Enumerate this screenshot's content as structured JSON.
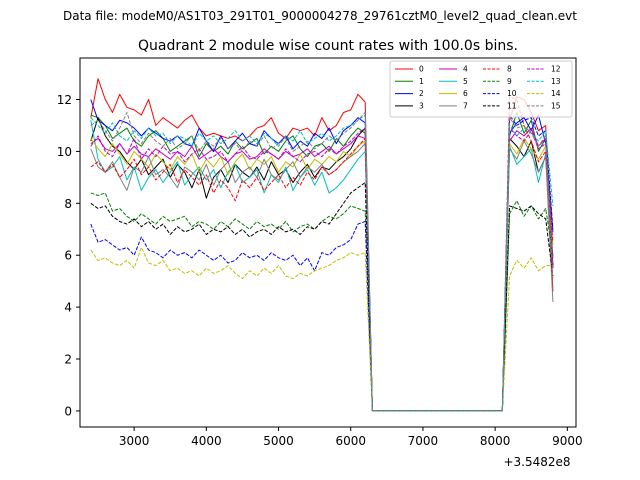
{
  "chart_data": {
    "type": "line",
    "suptitle": "Data file: modeM0/AS1T03_291T01_9000004278_29761cztM0_level2_quad_clean.evt",
    "title": "Quadrant 2 module wise count rates with 100.0s bins.",
    "xlabel": "",
    "ylabel": "",
    "offset_text": "+3.5482e8",
    "xlim": [
      2250,
      9120
    ],
    "ylim": [
      -0.62,
      13.6
    ],
    "xticks": [
      3000,
      4000,
      5000,
      6000,
      7000,
      8000,
      9000
    ],
    "yticks": [
      0,
      2,
      4,
      6,
      8,
      10,
      12
    ],
    "segments": [
      {
        "x_start": 2400,
        "x_end": 6200,
        "count": 39
      },
      {
        "x_start": 6300,
        "x_end": 8100,
        "count": 19
      },
      {
        "x_start": 8200,
        "x_end": 8800,
        "count": 7
      }
    ],
    "legend": {
      "loc": "upper right",
      "ncol": 4
    },
    "series": [
      {
        "name": "0",
        "color": "#ff0000",
        "dashed": false,
        "baseline": 11.4,
        "end_level": 4.6,
        "amplitude": 0.45,
        "seg1": [
          11.3,
          12.8,
          12.0,
          11.5,
          12.2,
          11.7,
          11.6,
          11.4,
          12.0,
          11.0,
          11.3,
          11.1,
          10.9,
          11.2,
          11.4,
          10.9,
          10.6,
          10.7,
          10.6,
          10.5,
          10.6,
          10.4,
          10.6,
          10.9,
          11.0,
          11.3,
          10.7,
          10.5,
          10.9,
          10.8,
          10.9,
          10.6,
          11.3,
          10.8,
          11.0,
          11.5,
          11.6,
          12.2,
          11.9
        ],
        "seg3": [
          11.2,
          12.1,
          12.0,
          11.5,
          10.8,
          11.0,
          4.6
        ]
      },
      {
        "name": "1",
        "color": "#008000",
        "dashed": false,
        "baseline": 10.4,
        "end_level": 5.5,
        "amplitude": 0.4,
        "seg1": [
          11.4,
          11.3,
          11.0,
          10.5,
          10.7,
          10.9,
          10.4,
          10.2,
          10.6,
          10.8,
          10.5,
          10.0,
          10.2,
          10.4,
          10.6,
          9.8,
          10.3,
          10.0,
          10.2,
          9.9,
          10.4,
          10.1,
          10.3,
          10.5,
          9.9,
          10.2,
          10.0,
          10.4,
          10.6,
          10.1,
          9.8,
          10.2,
          10.3,
          10.0,
          10.5,
          10.2,
          10.6,
          10.9,
          10.7
        ],
        "seg3": [
          10.6,
          11.5,
          10.7,
          11.2,
          10.0,
          10.5,
          5.5
        ]
      },
      {
        "name": "2",
        "color": "#0000ff",
        "dashed": false,
        "baseline": 10.5,
        "end_level": 6.9,
        "amplitude": 0.45,
        "seg1": [
          12.0,
          11.2,
          11.0,
          10.8,
          11.2,
          11.1,
          10.9,
          10.6,
          10.9,
          10.7,
          10.5,
          10.4,
          10.6,
          10.3,
          10.2,
          10.9,
          10.4,
          10.0,
          10.6,
          10.1,
          10.4,
          10.7,
          10.3,
          10.2,
          10.8,
          10.5,
          10.3,
          10.6,
          10.1,
          10.4,
          10.2,
          10.7,
          10.5,
          10.9,
          10.3,
          10.8,
          11.0,
          11.3,
          11.1
        ],
        "seg3": [
          10.7,
          11.1,
          11.3,
          10.8,
          11.4,
          10.3,
          6.9
        ]
      },
      {
        "name": "3",
        "color": "#000000",
        "dashed": false,
        "baseline": 9.4,
        "end_level": 5.6,
        "amplitude": 0.5,
        "seg1": [
          10.4,
          11.3,
          10.6,
          10.2,
          10.0,
          9.6,
          9.3,
          9.7,
          9.1,
          9.4,
          9.7,
          9.0,
          9.5,
          9.2,
          8.6,
          9.3,
          8.2,
          9.0,
          9.3,
          8.8,
          9.5,
          9.2,
          9.0,
          9.4,
          8.9,
          9.6,
          9.1,
          9.3,
          8.8,
          9.2,
          9.5,
          9.0,
          9.4,
          9.3,
          9.6,
          9.8,
          10.1,
          10.6,
          10.9
        ],
        "seg3": [
          10.5,
          10.2,
          9.8,
          10.4,
          9.2,
          9.8,
          5.6
        ]
      },
      {
        "name": "4",
        "color": "#bf00bf",
        "dashed": false,
        "baseline": 10.0,
        "end_level": 5.5,
        "amplitude": 0.35,
        "seg1": [
          10.3,
          10.5,
          10.1,
          10.0,
          10.3,
          9.9,
          10.2,
          9.9,
          9.8,
          10.1,
          9.9,
          9.7,
          10.0,
          9.8,
          10.2,
          9.7,
          9.9,
          10.1,
          9.8,
          9.6,
          9.9,
          10.0,
          9.7,
          9.8,
          10.1,
          9.9,
          9.7,
          10.0,
          9.8,
          9.9,
          10.1,
          9.8,
          10.0,
          10.2,
          9.9,
          10.1,
          10.3,
          10.6,
          10.5
        ],
        "seg3": [
          10.4,
          10.8,
          10.6,
          10.9,
          10.2,
          10.5,
          5.5
        ]
      },
      {
        "name": "5",
        "color": "#00bfbf",
        "dashed": false,
        "baseline": 9.2,
        "end_level": 5.9,
        "amplitude": 0.5,
        "seg1": [
          11.2,
          9.7,
          9.2,
          9.4,
          9.8,
          8.9,
          9.4,
          8.5,
          9.0,
          9.3,
          8.8,
          9.2,
          9.6,
          8.7,
          9.1,
          9.4,
          8.9,
          9.3,
          8.6,
          9.2,
          9.5,
          8.8,
          9.0,
          9.3,
          8.4,
          9.1,
          8.8,
          9.4,
          8.5,
          9.0,
          9.3,
          8.7,
          9.2,
          8.4,
          8.6,
          8.9,
          9.3,
          9.7,
          10.0
        ],
        "seg3": [
          10.2,
          9.5,
          9.8,
          10.1,
          8.8,
          9.9,
          5.9
        ]
      },
      {
        "name": "6",
        "color": "#bfbf00",
        "dashed": false,
        "baseline": 9.6,
        "end_level": 6.4,
        "amplitude": 0.4,
        "seg1": [
          10.5,
          10.1,
          9.8,
          10.3,
          9.9,
          9.5,
          10.0,
          9.7,
          9.4,
          9.9,
          9.6,
          9.3,
          9.8,
          9.5,
          9.9,
          9.2,
          9.7,
          9.4,
          9.8,
          9.1,
          9.6,
          9.9,
          9.3,
          9.7,
          9.5,
          9.8,
          9.2,
          9.6,
          9.4,
          9.9,
          9.3,
          9.7,
          9.5,
          9.8,
          9.6,
          10.0,
          9.8,
          10.2,
          10.4
        ],
        "seg3": [
          10.3,
          9.9,
          10.5,
          10.1,
          9.7,
          10.2,
          6.4
        ]
      },
      {
        "name": "7",
        "color": "#808080",
        "dashed": false,
        "baseline": 9.5,
        "end_level": 4.2,
        "amplitude": 0.5,
        "seg1": [
          10.1,
          9.4,
          9.2,
          9.6,
          9.0,
          8.5,
          9.4,
          9.2,
          9.8,
          9.1,
          9.3,
          9.0,
          8.6,
          9.4,
          9.2,
          8.9,
          9.5,
          8.7,
          9.3,
          9.6,
          8.8,
          9.2,
          9.4,
          9.0,
          9.7,
          9.1,
          8.9,
          9.3,
          9.6,
          9.0,
          9.4,
          9.2,
          9.5,
          9.1,
          9.3,
          9.6,
          9.8,
          10.0,
          10.3
        ],
        "seg3": [
          10.1,
          9.7,
          10.4,
          9.9,
          9.2,
          9.8,
          4.2
        ]
      },
      {
        "name": "8",
        "color": "#ff0000",
        "dashed": true,
        "baseline": 9.3,
        "end_level": 6.5,
        "amplitude": 0.4,
        "seg1": [
          9.4,
          9.6,
          9.2,
          9.5,
          9.0,
          9.3,
          9.7,
          9.1,
          9.4,
          8.9,
          9.2,
          9.5,
          8.8,
          9.3,
          9.0,
          8.7,
          9.1,
          8.4,
          8.9,
          8.6,
          8.1,
          8.9,
          8.6,
          9.0,
          8.5,
          8.8,
          9.1,
          8.6,
          9.0,
          8.7,
          9.2,
          8.9,
          9.4,
          9.1,
          9.3,
          9.6,
          9.9,
          10.2,
          10.5
        ],
        "seg3": [
          12.1,
          12.0,
          11.0,
          10.4,
          9.6,
          10.0,
          6.5
        ]
      },
      {
        "name": "9",
        "color": "#008000",
        "dashed": true,
        "baseline": 7.3,
        "end_level": 6.0,
        "amplitude": 0.3,
        "seg1": [
          8.4,
          8.3,
          8.4,
          7.7,
          7.8,
          7.5,
          7.3,
          7.6,
          7.4,
          7.2,
          7.5,
          7.3,
          7.4,
          7.5,
          7.1,
          7.3,
          7.2,
          7.0,
          7.3,
          7.1,
          7.4,
          7.2,
          7.0,
          7.3,
          7.1,
          7.2,
          7.0,
          7.3,
          6.9,
          7.1,
          7.2,
          7.0,
          7.3,
          7.5,
          7.4,
          7.6,
          7.9,
          7.8,
          7.7
        ],
        "seg3": [
          7.6,
          8.1,
          7.5,
          7.9,
          7.4,
          7.8,
          6.0
        ]
      },
      {
        "name": "10",
        "color": "#0000ff",
        "dashed": true,
        "baseline": 6.0,
        "end_level": 7.0,
        "amplitude": 0.35,
        "seg1": [
          7.2,
          6.5,
          6.6,
          6.4,
          6.2,
          6.3,
          6.0,
          6.7,
          6.2,
          6.1,
          5.9,
          6.2,
          6.0,
          6.1,
          5.9,
          6.2,
          6.0,
          5.8,
          6.0,
          5.7,
          5.8,
          6.1,
          5.9,
          6.0,
          5.8,
          6.1,
          5.9,
          5.8,
          6.0,
          5.6,
          5.9,
          5.4,
          6.1,
          6.0,
          6.3,
          6.4,
          6.6,
          7.2,
          7.3
        ],
        "seg3": [
          11.4,
          11.0,
          11.2,
          11.3,
          10.6,
          10.8,
          7.0
        ]
      },
      {
        "name": "11",
        "color": "#000000",
        "dashed": true,
        "baseline": 7.0,
        "end_level": 5.2,
        "amplitude": 0.3,
        "seg1": [
          8.0,
          7.8,
          7.9,
          7.5,
          7.3,
          7.2,
          7.4,
          7.1,
          7.3,
          7.0,
          7.2,
          6.8,
          7.1,
          6.9,
          7.0,
          7.2,
          6.8,
          7.0,
          6.9,
          7.1,
          6.8,
          7.0,
          6.7,
          6.9,
          7.0,
          6.8,
          7.1,
          6.9,
          7.0,
          6.8,
          7.1,
          7.0,
          7.3,
          7.2,
          7.6,
          8.0,
          8.4,
          8.6,
          8.8
        ],
        "seg3": [
          7.9,
          7.8,
          7.7,
          7.9,
          7.6,
          7.4,
          5.2
        ]
      },
      {
        "name": "12",
        "color": "#bf00bf",
        "dashed": true,
        "baseline": 10.0,
        "end_level": 5.8,
        "amplitude": 0.4,
        "seg1": [
          10.2,
          10.6,
          10.0,
          9.8,
          10.3,
          9.9,
          10.5,
          9.7,
          10.1,
          9.8,
          10.2,
          9.9,
          10.0,
          9.6,
          9.9,
          10.1,
          9.7,
          9.8,
          10.0,
          9.6,
          9.9,
          10.2,
          9.8,
          9.7,
          10.0,
          9.9,
          9.7,
          10.1,
          9.8,
          9.6,
          9.9,
          10.0,
          9.8,
          10.1,
          9.9,
          10.2,
          10.4,
          10.7,
          10.9
        ],
        "seg3": [
          10.9,
          10.6,
          10.4,
          10.8,
          10.1,
          10.3,
          5.8
        ]
      },
      {
        "name": "13",
        "color": "#00bfbf",
        "dashed": true,
        "baseline": 10.6,
        "end_level": 7.9,
        "amplitude": 0.35,
        "seg1": [
          11.3,
          11.0,
          10.7,
          11.1,
          10.6,
          10.4,
          10.8,
          10.5,
          10.9,
          10.6,
          10.7,
          10.3,
          10.6,
          10.5,
          10.2,
          10.7,
          10.4,
          10.6,
          10.3,
          10.5,
          10.8,
          10.4,
          10.6,
          10.3,
          10.7,
          10.5,
          10.2,
          10.6,
          10.4,
          10.8,
          10.3,
          10.5,
          10.7,
          10.4,
          10.6,
          10.9,
          11.0,
          11.2,
          11.4
        ],
        "seg3": [
          11.0,
          10.6,
          10.9,
          10.7,
          10.4,
          10.8,
          7.9
        ]
      },
      {
        "name": "14",
        "color": "#bfbf00",
        "dashed": true,
        "baseline": 5.4,
        "end_level": 5.6,
        "amplitude": 0.3,
        "seg1": [
          6.2,
          5.8,
          5.9,
          5.7,
          5.6,
          5.8,
          5.5,
          6.3,
          5.7,
          5.6,
          5.8,
          5.4,
          5.5,
          5.3,
          5.4,
          5.2,
          5.5,
          5.3,
          5.4,
          5.6,
          5.3,
          5.1,
          5.4,
          5.2,
          5.5,
          5.3,
          5.6,
          5.2,
          5.1,
          5.3,
          5.2,
          5.4,
          5.5,
          5.6,
          5.8,
          5.9,
          6.1,
          6.0,
          6.1
        ],
        "seg3": [
          5.2,
          5.8,
          5.5,
          5.9,
          5.4,
          5.6,
          5.6
        ]
      },
      {
        "name": "15",
        "color": "#808080",
        "dashed": true,
        "baseline": 10.2,
        "end_level": 5.0,
        "amplitude": 0.35,
        "seg1": [
          11.0,
          11.2,
          10.8,
          10.4,
          10.9,
          11.5,
          10.6,
          10.3,
          10.7,
          10.4,
          10.2,
          10.5,
          10.1,
          10.3,
          10.6,
          10.0,
          10.4,
          10.2,
          10.5,
          10.1,
          10.3,
          10.0,
          10.4,
          10.2,
          10.6,
          10.1,
          10.3,
          10.5,
          10.0,
          10.2,
          10.4,
          10.1,
          10.3,
          10.6,
          10.4,
          10.7,
          10.9,
          11.2,
          11.5
        ],
        "seg3": [
          11.3,
          10.9,
          11.0,
          10.7,
          10.2,
          10.6,
          5.0
        ]
      }
    ]
  }
}
